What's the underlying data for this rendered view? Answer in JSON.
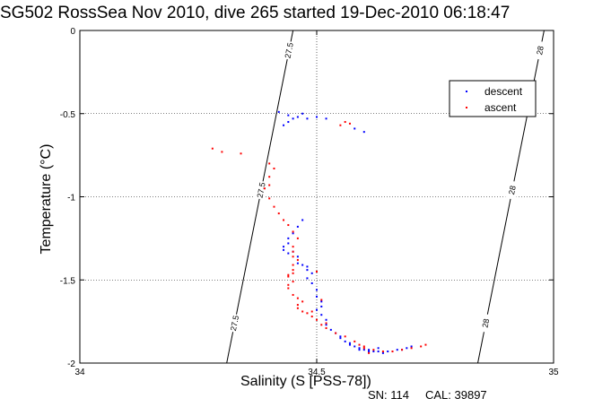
{
  "chart_data": {
    "type": "scatter",
    "title": "SG502 RossSea Nov 2010, dive 265 started 19-Dec-2010 06:18:47",
    "xlabel": "Salinity (S [PSS-78])",
    "ylabel": "Temperature (°C)",
    "xlim": [
      34,
      35
    ],
    "ylim": [
      -2,
      0
    ],
    "xticks": [
      "34",
      "34.5",
      "35"
    ],
    "yticks": [
      "0",
      "-0.5",
      "-1",
      "-1.5",
      "-2"
    ],
    "grid": true,
    "legend_position": "top-right",
    "series": [
      {
        "name": "descent",
        "color": "#0000ff",
        "points": [
          [
            34.42,
            -0.49
          ],
          [
            34.44,
            -0.51
          ],
          [
            34.45,
            -0.53
          ],
          [
            34.46,
            -0.52
          ],
          [
            34.47,
            -0.5
          ],
          [
            34.48,
            -0.53
          ],
          [
            34.5,
            -0.52
          ],
          [
            34.52,
            -0.53
          ],
          [
            34.58,
            -0.59
          ],
          [
            34.6,
            -0.61
          ],
          [
            34.44,
            -0.55
          ],
          [
            34.43,
            -0.57
          ],
          [
            34.47,
            -1.14
          ],
          [
            34.46,
            -1.18
          ],
          [
            34.45,
            -1.22
          ],
          [
            34.44,
            -1.25
          ],
          [
            34.44,
            -1.28
          ],
          [
            34.43,
            -1.3
          ],
          [
            34.43,
            -1.32
          ],
          [
            34.44,
            -1.34
          ],
          [
            34.45,
            -1.33
          ],
          [
            34.46,
            -1.36
          ],
          [
            34.46,
            -1.4
          ],
          [
            34.47,
            -1.41
          ],
          [
            34.48,
            -1.42
          ],
          [
            34.48,
            -1.44
          ],
          [
            34.49,
            -1.46
          ],
          [
            34.48,
            -1.49
          ],
          [
            34.49,
            -1.52
          ],
          [
            34.5,
            -1.56
          ],
          [
            34.5,
            -1.6
          ],
          [
            34.51,
            -1.63
          ],
          [
            34.51,
            -1.66
          ],
          [
            34.5,
            -1.68
          ],
          [
            34.51,
            -1.71
          ],
          [
            34.52,
            -1.74
          ],
          [
            34.52,
            -1.77
          ],
          [
            34.53,
            -1.8
          ],
          [
            34.54,
            -1.82
          ],
          [
            34.55,
            -1.85
          ],
          [
            34.56,
            -1.87
          ],
          [
            34.57,
            -1.89
          ],
          [
            34.58,
            -1.9
          ],
          [
            34.59,
            -1.91
          ],
          [
            34.6,
            -1.92
          ],
          [
            34.61,
            -1.93
          ],
          [
            34.62,
            -1.93
          ],
          [
            34.63,
            -1.93
          ],
          [
            34.64,
            -1.94
          ],
          [
            34.65,
            -1.93
          ],
          [
            34.66,
            -1.93
          ],
          [
            34.67,
            -1.92
          ],
          [
            34.68,
            -1.92
          ],
          [
            34.69,
            -1.91
          ],
          [
            34.7,
            -1.9
          ],
          [
            34.55,
            -1.84
          ],
          [
            34.57,
            -1.88
          ],
          [
            34.59,
            -1.92
          ],
          [
            34.61,
            -1.92
          ],
          [
            34.63,
            -1.91
          ]
        ]
      },
      {
        "name": "ascent",
        "color": "#ff0000",
        "points": [
          [
            34.56,
            -0.55
          ],
          [
            34.57,
            -0.56
          ],
          [
            34.55,
            -0.57
          ],
          [
            34.28,
            -0.71
          ],
          [
            34.3,
            -0.73
          ],
          [
            34.34,
            -0.74
          ],
          [
            34.4,
            -0.8
          ],
          [
            34.41,
            -0.83
          ],
          [
            34.4,
            -0.88
          ],
          [
            34.4,
            -0.93
          ],
          [
            34.39,
            -0.95
          ],
          [
            34.4,
            -1.01
          ],
          [
            34.41,
            -1.06
          ],
          [
            34.42,
            -1.1
          ],
          [
            34.43,
            -1.14
          ],
          [
            34.44,
            -1.17
          ],
          [
            34.45,
            -1.21
          ],
          [
            34.46,
            -1.25
          ],
          [
            34.45,
            -1.3
          ],
          [
            34.45,
            -1.33
          ],
          [
            34.45,
            -1.36
          ],
          [
            34.46,
            -1.38
          ],
          [
            34.45,
            -1.41
          ],
          [
            34.45,
            -1.44
          ],
          [
            34.45,
            -1.46
          ],
          [
            34.44,
            -1.47
          ],
          [
            34.44,
            -1.48
          ],
          [
            34.45,
            -1.51
          ],
          [
            34.44,
            -1.53
          ],
          [
            34.44,
            -1.55
          ],
          [
            34.45,
            -1.59
          ],
          [
            34.46,
            -1.61
          ],
          [
            34.47,
            -1.63
          ],
          [
            34.46,
            -1.65
          ],
          [
            34.46,
            -1.67
          ],
          [
            34.47,
            -1.69
          ],
          [
            34.48,
            -1.7
          ],
          [
            34.49,
            -1.72
          ],
          [
            34.5,
            -1.74
          ],
          [
            34.51,
            -1.77
          ],
          [
            34.52,
            -1.79
          ],
          [
            34.54,
            -1.82
          ],
          [
            34.56,
            -1.84
          ],
          [
            34.58,
            -1.87
          ],
          [
            34.6,
            -1.9
          ],
          [
            34.62,
            -1.92
          ],
          [
            34.64,
            -1.93
          ],
          [
            34.66,
            -1.93
          ],
          [
            34.68,
            -1.92
          ],
          [
            34.7,
            -1.91
          ],
          [
            34.72,
            -1.9
          ],
          [
            34.73,
            -1.89
          ],
          [
            34.6,
            -1.91
          ],
          [
            34.61,
            -1.94
          ],
          [
            34.59,
            -1.89
          ],
          [
            34.5,
            -1.45
          ],
          [
            34.51,
            -1.62
          ],
          [
            34.49,
            -1.69
          ],
          [
            34.52,
            -1.76
          ]
        ]
      }
    ],
    "isopycnals": [
      {
        "label": "27.5",
        "x_at_top": 34.45,
        "x_at_bottom": 34.31
      },
      {
        "label": "28",
        "x_at_top": 34.98,
        "x_at_bottom": 34.84
      }
    ]
  },
  "footer": {
    "serial": "SN: 114",
    "calibration": "CAL: 39897"
  }
}
